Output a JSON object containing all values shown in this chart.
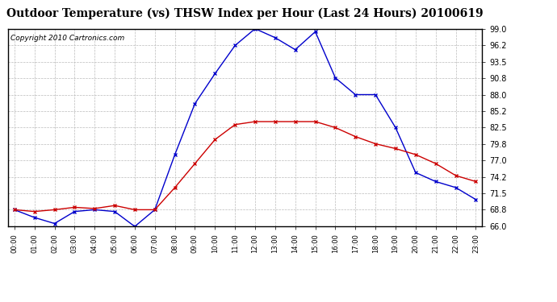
{
  "title": "Outdoor Temperature (vs) THSW Index per Hour (Last 24 Hours) 20100619",
  "copyright": "Copyright 2010 Cartronics.com",
  "hours": [
    0,
    1,
    2,
    3,
    4,
    5,
    6,
    7,
    8,
    9,
    10,
    11,
    12,
    13,
    14,
    15,
    16,
    17,
    18,
    19,
    20,
    21,
    22,
    23
  ],
  "hour_labels": [
    "00:00",
    "01:00",
    "02:00",
    "03:00",
    "04:00",
    "05:00",
    "06:00",
    "07:00",
    "08:00",
    "09:00",
    "10:00",
    "11:00",
    "12:00",
    "13:00",
    "14:00",
    "15:00",
    "16:00",
    "17:00",
    "18:00",
    "19:00",
    "20:00",
    "21:00",
    "22:00",
    "23:00"
  ],
  "temp_red": [
    68.8,
    68.5,
    68.8,
    69.2,
    69.0,
    69.5,
    68.8,
    68.8,
    72.5,
    76.5,
    80.5,
    83.0,
    83.5,
    83.5,
    83.5,
    83.5,
    82.5,
    81.0,
    79.8,
    79.0,
    78.0,
    76.5,
    74.5,
    73.5
  ],
  "thsw_blue": [
    68.8,
    67.5,
    66.5,
    68.5,
    68.8,
    68.5,
    66.0,
    68.8,
    78.0,
    86.5,
    91.5,
    96.2,
    99.0,
    97.5,
    95.5,
    98.5,
    90.8,
    88.0,
    88.0,
    82.5,
    75.0,
    73.5,
    72.5,
    70.5
  ],
  "ylim_min": 66.0,
  "ylim_max": 99.0,
  "yticks": [
    66.0,
    68.8,
    71.5,
    74.2,
    77.0,
    79.8,
    82.5,
    85.2,
    88.0,
    90.8,
    93.5,
    96.2,
    99.0
  ],
  "bg_color": "#ffffff",
  "plot_bg": "#ffffff",
  "grid_color": "#bbbbbb",
  "red_color": "#cc0000",
  "blue_color": "#0000cc",
  "title_fontsize": 10,
  "copyright_fontsize": 6.5
}
